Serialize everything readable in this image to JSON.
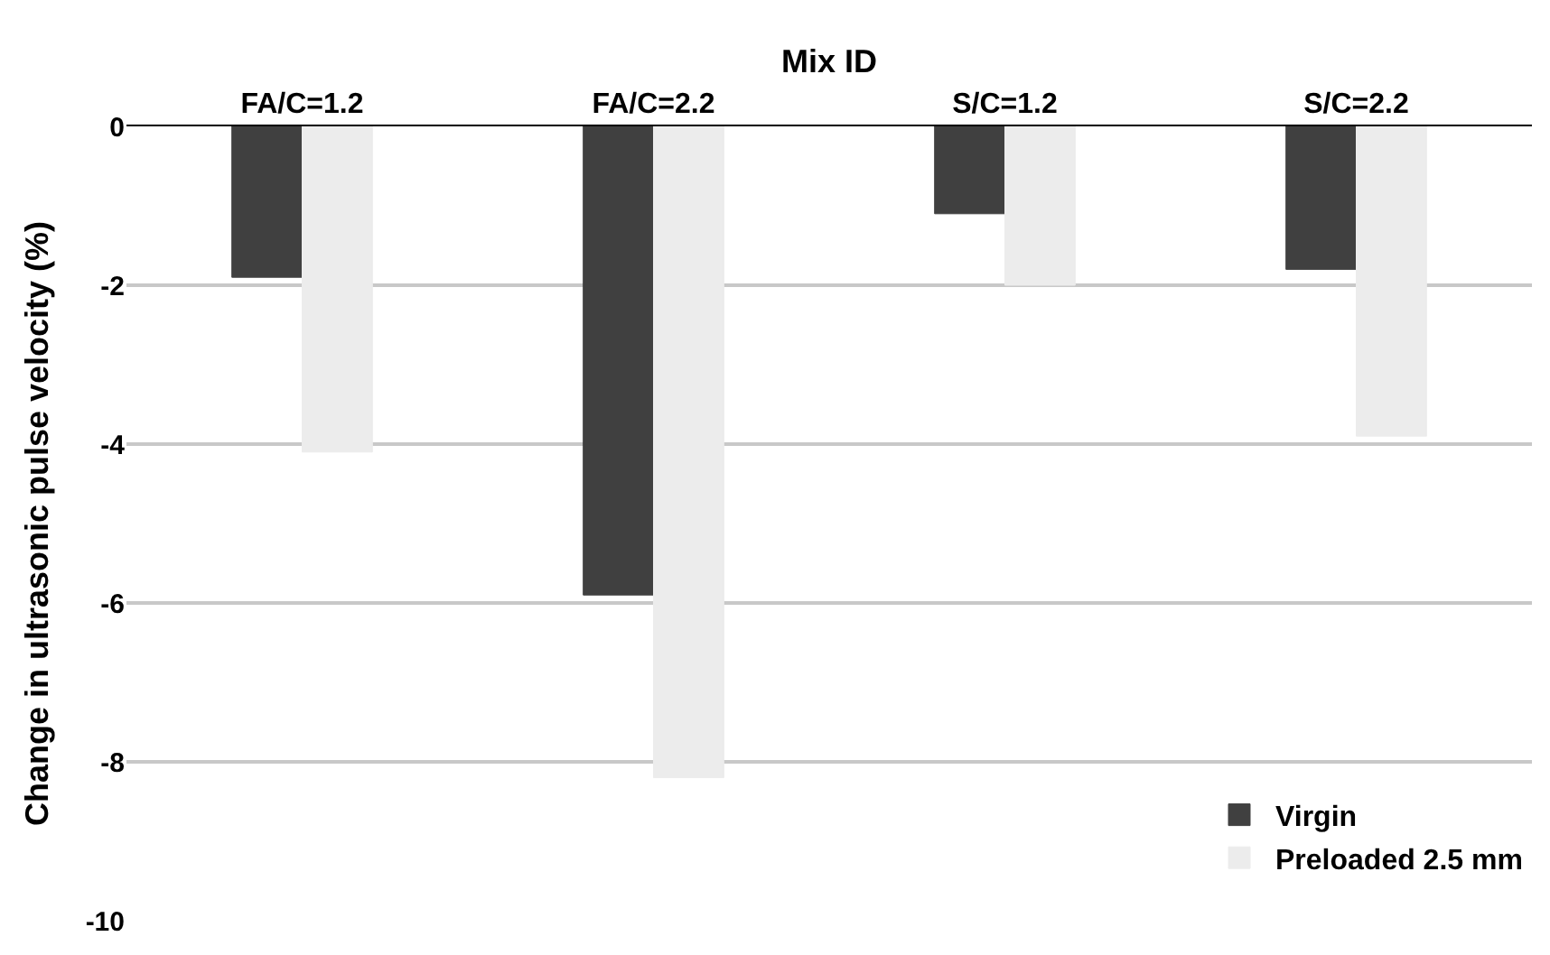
{
  "chart_data": {
    "type": "bar",
    "xlabel": "Mix ID",
    "ylabel": "Change in ultrasonic pulse velocity (%)",
    "categories": [
      "FA/C=1.2",
      "FA/C=2.2",
      "S/C=1.2",
      "S/C=2.2"
    ],
    "series": [
      {
        "name": "Virgin",
        "color": "#404040",
        "values": [
          -1.9,
          -5.9,
          -1.1,
          -1.8
        ]
      },
      {
        "name": "Preloaded 2.5 mm",
        "color": "#ececec",
        "values": [
          -4.1,
          -8.2,
          -2.0,
          -3.9
        ]
      }
    ],
    "ylim": [
      -10,
      0
    ],
    "yticks": [
      -10,
      -8,
      -6,
      -4,
      -2,
      0
    ],
    "grid": "y",
    "legend": "bottom right"
  }
}
